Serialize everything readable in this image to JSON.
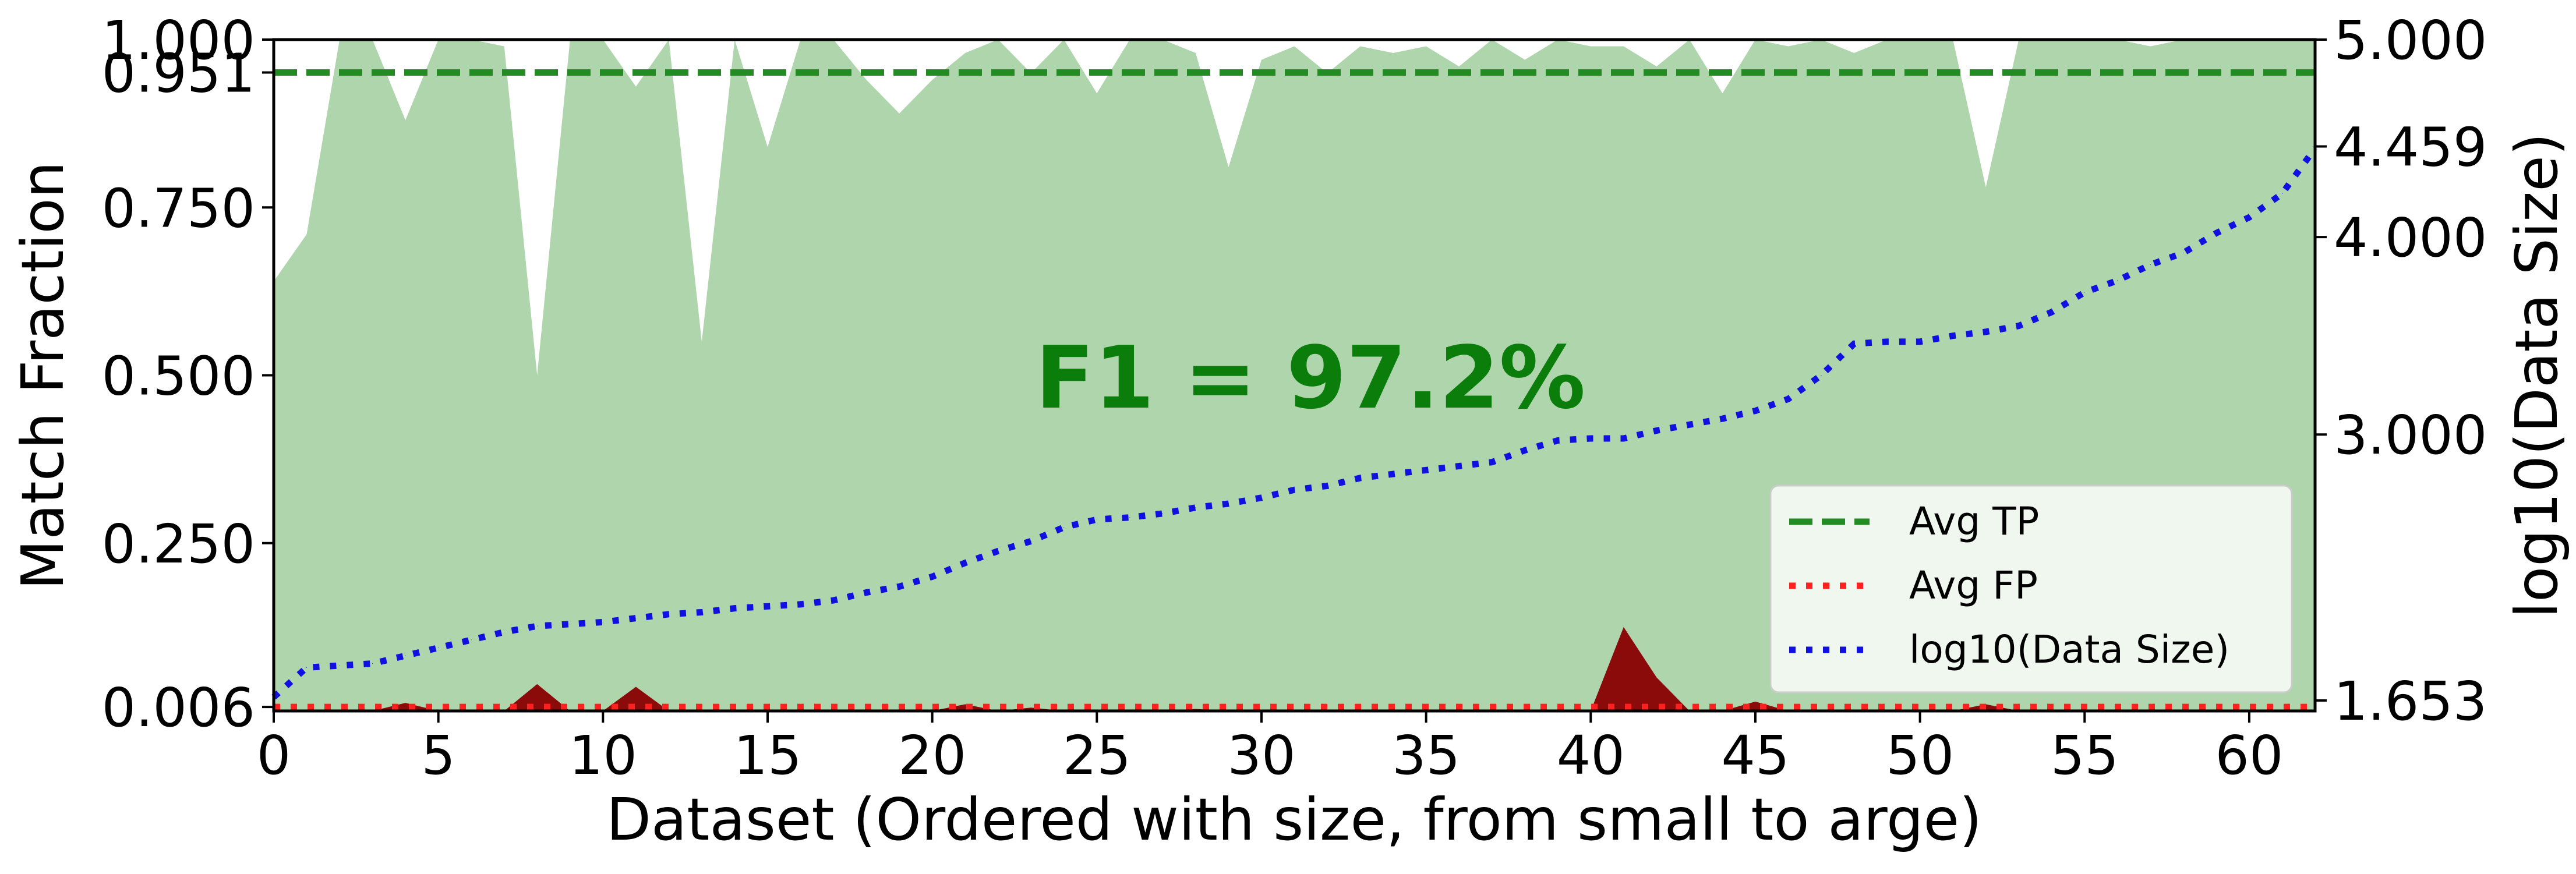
{
  "chart_data": {
    "type": "area",
    "xlabel": "Dataset (Ordered with size, from small to arge)",
    "ylabel": "Match Fraction",
    "y2label": "log10(Data Size)",
    "xlim": [
      0,
      62
    ],
    "ylim": [
      0,
      1
    ],
    "y2lim": [
      1.6,
      5.0
    ],
    "x_ticks": [
      0,
      5,
      10,
      15,
      20,
      25,
      30,
      35,
      40,
      45,
      50,
      55,
      60
    ],
    "x_tick_labels": [
      "0",
      "5",
      "10",
      "15",
      "20",
      "25",
      "30",
      "35",
      "40",
      "45",
      "50",
      "55",
      "60"
    ],
    "y_ticks": [
      0.006,
      0.25,
      0.5,
      0.75,
      0.951,
      1.0
    ],
    "y_tick_labels": [
      "0.006",
      "0.250",
      "0.500",
      "0.750",
      "0.951",
      "1.000"
    ],
    "y2_ticks": [
      1.653,
      3.0,
      4.0,
      4.459,
      5.0
    ],
    "y2_tick_labels": [
      "1.653",
      "3.000",
      "4.000",
      "4.459",
      "5.000"
    ],
    "grid": false,
    "annotation": "F1 = 97.2%",
    "legend_position": "lower-right",
    "legend": [
      {
        "label": "Avg TP",
        "style": "dashed",
        "color": "#228b22"
      },
      {
        "label": "Avg FP",
        "style": "dotted",
        "color": "#ff2020"
      },
      {
        "label": "log10(Data Size)",
        "style": "dotted",
        "color": "#1010e0"
      }
    ],
    "series": [
      {
        "key": "tp",
        "type": "area",
        "color": "#aed5ac",
        "values": [
          0.64,
          0.71,
          1.0,
          1.0,
          0.88,
          1.0,
          1.0,
          0.99,
          0.5,
          1.0,
          1.0,
          0.93,
          1.0,
          0.55,
          1.0,
          0.84,
          1.0,
          1.0,
          0.94,
          0.89,
          0.94,
          0.98,
          1.0,
          0.95,
          1.0,
          0.92,
          1.0,
          1.0,
          0.98,
          0.81,
          0.97,
          0.99,
          0.95,
          0.99,
          0.98,
          0.99,
          0.96,
          1.0,
          0.97,
          1.0,
          0.99,
          0.99,
          0.96,
          1.0,
          0.92,
          1.0,
          0.99,
          1.0,
          0.98,
          1.0,
          1.0,
          1.0,
          0.78,
          1.0,
          1.0,
          1.0,
          1.0,
          0.99,
          1.0,
          1.0,
          1.0,
          1.0,
          1.0
        ]
      },
      {
        "key": "fp",
        "type": "area",
        "color": "#8b0a0a",
        "values": [
          0,
          0,
          0,
          0,
          0.012,
          0,
          0,
          0,
          0.04,
          0,
          0,
          0.036,
          0,
          0,
          0,
          0,
          0,
          0,
          0,
          0,
          0,
          0.01,
          0,
          0.005,
          0,
          0,
          0,
          0,
          0.003,
          0,
          0,
          0,
          0,
          0,
          0,
          0,
          0,
          0,
          0,
          0,
          0,
          0.125,
          0.05,
          0,
          0,
          0.014,
          0,
          0,
          0,
          0,
          0,
          0,
          0.01,
          0,
          0,
          0,
          0,
          0,
          0,
          0,
          0,
          0,
          0
        ]
      },
      {
        "key": "avg_tp",
        "type": "hline",
        "name": "Avg TP",
        "value": 0.951,
        "color": "#228b22"
      },
      {
        "key": "avg_fp",
        "type": "hline",
        "name": "Avg FP",
        "value": 0.006,
        "color": "#ff2020"
      },
      {
        "key": "log_size",
        "type": "line",
        "axis": "right",
        "name": "log10(Data Size)",
        "color": "#1010e0",
        "values": [
          1.67,
          1.82,
          1.83,
          1.84,
          1.88,
          1.92,
          1.96,
          2.0,
          2.03,
          2.04,
          2.05,
          2.07,
          2.09,
          2.1,
          2.12,
          2.13,
          2.14,
          2.16,
          2.2,
          2.23,
          2.28,
          2.35,
          2.41,
          2.46,
          2.53,
          2.57,
          2.58,
          2.6,
          2.63,
          2.65,
          2.68,
          2.72,
          2.74,
          2.78,
          2.8,
          2.82,
          2.84,
          2.86,
          2.92,
          2.97,
          2.98,
          2.98,
          3.02,
          3.05,
          3.08,
          3.12,
          3.18,
          3.3,
          3.46,
          3.47,
          3.47,
          3.5,
          3.52,
          3.55,
          3.62,
          3.72,
          3.78,
          3.86,
          3.92,
          4.02,
          4.1,
          4.22,
          4.45
        ]
      }
    ]
  }
}
